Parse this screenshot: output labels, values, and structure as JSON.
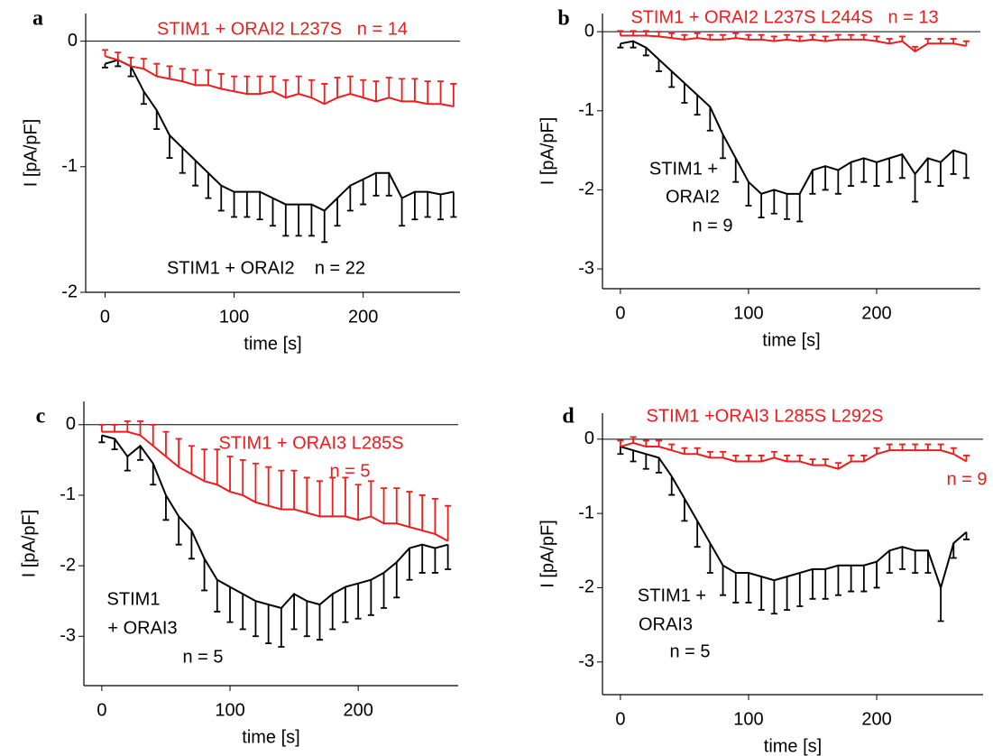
{
  "chart_data": [
    {
      "type": "errorline",
      "label": "a",
      "xlabel": "time [s]",
      "ylabel": "I [pA/pF]",
      "x": [
        0,
        10,
        20,
        30,
        40,
        50,
        60,
        70,
        80,
        90,
        100,
        110,
        120,
        130,
        140,
        150,
        160,
        170,
        180,
        190,
        200,
        210,
        220,
        230,
        240,
        250,
        260,
        270
      ],
      "xlim": [
        -15,
        275
      ],
      "xticks": [
        0,
        100,
        200
      ],
      "ylim": [
        -2,
        0.22
      ],
      "yticks": [
        -2,
        -1,
        0
      ],
      "series": [
        {
          "label": [
            "STIM1 + ORAI2    n = 22"
          ],
          "color": "#000000",
          "error_direction": "down",
          "values": [
            -0.18,
            -0.15,
            -0.2,
            -0.4,
            -0.55,
            -0.75,
            -0.85,
            -0.95,
            -1.05,
            -1.15,
            -1.2,
            -1.2,
            -1.2,
            -1.25,
            -1.3,
            -1.3,
            -1.3,
            -1.35,
            -1.25,
            -1.15,
            -1.1,
            -1.05,
            -1.05,
            -1.25,
            -1.2,
            -1.2,
            -1.22,
            -1.2
          ],
          "errors": [
            0.03,
            0.05,
            0.08,
            0.1,
            0.15,
            0.18,
            0.2,
            0.2,
            0.2,
            0.2,
            0.2,
            0.2,
            0.22,
            0.22,
            0.25,
            0.25,
            0.25,
            0.25,
            0.22,
            0.2,
            0.2,
            0.18,
            0.18,
            0.22,
            0.22,
            0.2,
            0.2,
            0.2
          ]
        },
        {
          "label": [
            "STIM1 + ORAI2 L237S   n = 14"
          ],
          "color": "#ee1c1c",
          "error_direction": "up",
          "values": [
            -0.12,
            -0.15,
            -0.2,
            -0.22,
            -0.28,
            -0.3,
            -0.32,
            -0.35,
            -0.35,
            -0.38,
            -0.4,
            -0.42,
            -0.42,
            -0.4,
            -0.45,
            -0.42,
            -0.45,
            -0.5,
            -0.45,
            -0.42,
            -0.45,
            -0.48,
            -0.45,
            -0.48,
            -0.48,
            -0.5,
            -0.5,
            -0.52
          ],
          "errors": [
            0.05,
            0.06,
            0.07,
            0.08,
            0.1,
            0.1,
            0.1,
            0.12,
            0.12,
            0.12,
            0.12,
            0.14,
            0.14,
            0.12,
            0.14,
            0.14,
            0.14,
            0.16,
            0.16,
            0.14,
            0.14,
            0.16,
            0.16,
            0.18,
            0.18,
            0.18,
            0.18,
            0.18
          ]
        }
      ]
    },
    {
      "type": "errorline",
      "label": "b",
      "xlabel": "time [s]",
      "ylabel": "I [pA/pF]",
      "x": [
        0,
        10,
        20,
        30,
        40,
        50,
        60,
        70,
        80,
        90,
        100,
        110,
        120,
        130,
        140,
        150,
        160,
        170,
        180,
        190,
        200,
        210,
        220,
        230,
        240,
        250,
        260,
        270
      ],
      "xlim": [
        -14,
        281
      ],
      "xticks": [
        0,
        100,
        200
      ],
      "ylim": [
        -3.25,
        0.23
      ],
      "yticks": [
        -3,
        -2,
        -1,
        0
      ],
      "series": [
        {
          "label": [
            "STIM1 +",
            "ORAI2",
            "n = 9"
          ],
          "color": "#000000",
          "error_direction": "down",
          "values": [
            -0.15,
            -0.12,
            -0.2,
            -0.35,
            -0.5,
            -0.65,
            -0.8,
            -0.95,
            -1.3,
            -1.6,
            -1.9,
            -2.05,
            -2.0,
            -2.05,
            -2.05,
            -1.75,
            -1.7,
            -1.75,
            -1.65,
            -1.6,
            -1.65,
            -1.6,
            -1.55,
            -1.8,
            -1.6,
            -1.65,
            -1.5,
            -1.55
          ],
          "errors": [
            0.05,
            0.08,
            0.1,
            0.15,
            0.2,
            0.25,
            0.25,
            0.3,
            0.3,
            0.3,
            0.3,
            0.3,
            0.3,
            0.32,
            0.35,
            0.3,
            0.3,
            0.3,
            0.3,
            0.3,
            0.3,
            0.3,
            0.3,
            0.35,
            0.3,
            0.3,
            0.3,
            0.3
          ]
        },
        {
          "label": [
            "STIM1 + ORAI2 L237S L244S   n = 13"
          ],
          "color": "#ee1c1c",
          "error_direction": "up",
          "values": [
            -0.05,
            -0.05,
            -0.05,
            -0.06,
            -0.08,
            -0.1,
            -0.08,
            -0.1,
            -0.1,
            -0.08,
            -0.1,
            -0.1,
            -0.12,
            -0.1,
            -0.12,
            -0.1,
            -0.12,
            -0.1,
            -0.1,
            -0.1,
            -0.12,
            -0.15,
            -0.12,
            -0.25,
            -0.15,
            -0.15,
            -0.15,
            -0.18
          ],
          "errors": [
            0.06,
            0.06,
            0.06,
            0.06,
            0.06,
            0.06,
            0.06,
            0.06,
            0.06,
            0.06,
            0.06,
            0.06,
            0.06,
            0.06,
            0.06,
            0.06,
            0.06,
            0.06,
            0.06,
            0.06,
            0.06,
            0.06,
            0.06,
            0.06,
            0.06,
            0.06,
            0.06,
            0.06
          ]
        }
      ]
    },
    {
      "type": "errorline",
      "label": "c",
      "xlabel": "time [s]",
      "ylabel": "I [pA/pF]",
      "x": [
        0,
        10,
        20,
        30,
        40,
        50,
        60,
        70,
        80,
        90,
        100,
        110,
        120,
        130,
        140,
        150,
        160,
        170,
        180,
        190,
        200,
        210,
        220,
        230,
        240,
        250,
        260,
        270
      ],
      "xlim": [
        -14,
        278
      ],
      "xticks": [
        0,
        100,
        200
      ],
      "ylim": [
        -3.7,
        0.33
      ],
      "yticks": [
        -3,
        -2,
        -1,
        0
      ],
      "series": [
        {
          "label": [
            "STIM1",
            "+ ORAI3",
            "n = 5"
          ],
          "color": "#000000",
          "error_direction": "down",
          "values": [
            -0.15,
            -0.2,
            -0.45,
            -0.3,
            -0.55,
            -1.0,
            -1.3,
            -1.5,
            -1.9,
            -2.2,
            -2.3,
            -2.4,
            -2.5,
            -2.55,
            -2.6,
            -2.4,
            -2.5,
            -2.55,
            -2.4,
            -2.3,
            -2.25,
            -2.2,
            -2.1,
            -1.95,
            -1.75,
            -1.7,
            -1.75,
            -1.7
          ],
          "errors": [
            0.1,
            0.15,
            0.2,
            0.2,
            0.3,
            0.35,
            0.4,
            0.4,
            0.45,
            0.45,
            0.5,
            0.5,
            0.5,
            0.55,
            0.55,
            0.5,
            0.5,
            0.5,
            0.5,
            0.5,
            0.5,
            0.5,
            0.5,
            0.5,
            0.45,
            0.4,
            0.35,
            0.35
          ]
        },
        {
          "label": [
            "STIM1 + ORAI3 L285S",
            "n = 5"
          ],
          "color": "#ee1c1c",
          "error_direction": "up",
          "values": [
            -0.1,
            -0.1,
            -0.1,
            -0.15,
            -0.3,
            -0.45,
            -0.6,
            -0.7,
            -0.8,
            -0.85,
            -0.95,
            -1.0,
            -1.1,
            -1.15,
            -1.2,
            -1.2,
            -1.25,
            -1.3,
            -1.3,
            -1.3,
            -1.35,
            -1.3,
            -1.4,
            -1.4,
            -1.45,
            -1.5,
            -1.55,
            -1.65
          ],
          "errors": [
            0.1,
            0.1,
            0.15,
            0.2,
            0.3,
            0.35,
            0.4,
            0.4,
            0.45,
            0.5,
            0.5,
            0.5,
            0.55,
            0.55,
            0.55,
            0.55,
            0.5,
            0.5,
            0.55,
            0.55,
            0.5,
            0.5,
            0.5,
            0.5,
            0.5,
            0.5,
            0.5,
            0.5
          ]
        }
      ]
    },
    {
      "type": "errorline",
      "label": "d",
      "xlabel": "time [s]",
      "ylabel": "I [pA/pF]",
      "x": [
        0,
        10,
        20,
        30,
        40,
        50,
        60,
        70,
        80,
        90,
        100,
        110,
        120,
        130,
        140,
        150,
        160,
        170,
        180,
        190,
        200,
        210,
        220,
        230,
        240,
        250,
        260,
        270
      ],
      "xlim": [
        -14,
        283
      ],
      "xticks": [
        0,
        100,
        200
      ],
      "ylim": [
        -3.44,
        0.35
      ],
      "yticks": [
        -3,
        -2,
        -1,
        0
      ],
      "series": [
        {
          "label": [
            "STIM1 +",
            "ORAI3",
            "n = 5"
          ],
          "color": "#000000",
          "error_direction": "down",
          "values": [
            -0.1,
            -0.15,
            -0.2,
            -0.25,
            -0.5,
            -0.8,
            -1.1,
            -1.4,
            -1.7,
            -1.8,
            -1.8,
            -1.85,
            -1.9,
            -1.85,
            -1.8,
            -1.75,
            -1.75,
            -1.7,
            -1.7,
            -1.7,
            -1.65,
            -1.5,
            -1.45,
            -1.5,
            -1.5,
            -2.0,
            -1.4,
            -1.25
          ],
          "errors": [
            0.1,
            0.15,
            0.2,
            0.2,
            0.25,
            0.3,
            0.35,
            0.4,
            0.4,
            0.4,
            0.4,
            0.45,
            0.45,
            0.45,
            0.45,
            0.4,
            0.4,
            0.4,
            0.35,
            0.35,
            0.35,
            0.3,
            0.3,
            0.3,
            0.3,
            0.45,
            0.2,
            0.1
          ]
        },
        {
          "label": [
            "STIM1 +ORAI3 L285S L292S",
            "n = 9"
          ],
          "color": "#ee1c1c",
          "error_direction": "up",
          "values": [
            -0.1,
            -0.05,
            -0.1,
            -0.1,
            -0.15,
            -0.2,
            -0.2,
            -0.25,
            -0.25,
            -0.3,
            -0.3,
            -0.3,
            -0.25,
            -0.3,
            -0.3,
            -0.35,
            -0.35,
            -0.4,
            -0.3,
            -0.3,
            -0.2,
            -0.15,
            -0.15,
            -0.15,
            -0.15,
            -0.15,
            -0.2,
            -0.3
          ],
          "errors": [
            0.08,
            0.08,
            0.08,
            0.08,
            0.08,
            0.08,
            0.08,
            0.08,
            0.08,
            0.08,
            0.08,
            0.08,
            0.08,
            0.08,
            0.08,
            0.08,
            0.08,
            0.08,
            0.08,
            0.08,
            0.08,
            0.08,
            0.08,
            0.08,
            0.08,
            0.08,
            0.08,
            0.08
          ]
        }
      ]
    }
  ]
}
